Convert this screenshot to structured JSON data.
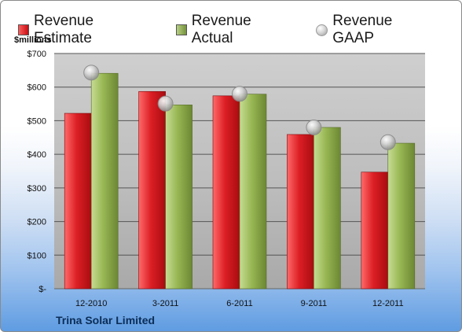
{
  "legend": {
    "estimate_label": "Revenue Estimate",
    "actual_label": "Revenue Actual",
    "gaap_label": "Revenue GAAP"
  },
  "unit_label": "$millions",
  "company": "Trina Solar Limited",
  "colors": {
    "estimate": "#d4141c",
    "actual": "#8fb04c",
    "gaap": "#bfbfbf",
    "plot_bg": "#c9c9c9",
    "grid": "#555555"
  },
  "chart_data": {
    "type": "bar",
    "title": "",
    "xlabel": "",
    "ylabel": "$millions",
    "categories": [
      "12-2010",
      "3-2011",
      "6-2011",
      "9-2011",
      "12-2011"
    ],
    "series": [
      {
        "name": "Revenue Estimate",
        "values": [
          522,
          587,
          574,
          459,
          347
        ]
      },
      {
        "name": "Revenue Actual",
        "values": [
          641,
          547,
          579,
          480,
          433
        ]
      },
      {
        "name": "Revenue GAAP",
        "values": [
          643,
          551,
          580,
          480,
          436
        ],
        "marker": "circle"
      }
    ],
    "ylim": [
      0,
      700
    ],
    "yticks": [
      0,
      100,
      200,
      300,
      400,
      500,
      600,
      700
    ],
    "ytick_labels": [
      "$-",
      "$100",
      "$200",
      "$300",
      "$400",
      "$500",
      "$600",
      "$700"
    ],
    "grid": true,
    "legend_position": "top"
  }
}
